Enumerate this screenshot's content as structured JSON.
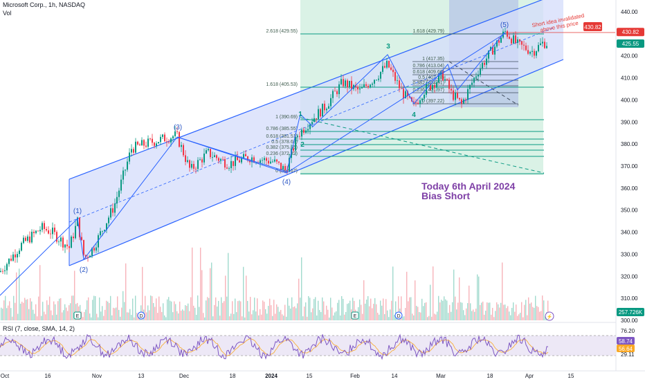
{
  "header": {
    "symbol_line": "Microsoft Corp., 1h, NASDAQ",
    "volume_label": "Vol"
  },
  "rsi": {
    "legend": "RSI (7, close, SMA, 14, 2)",
    "ticks": [
      "76.20",
      "29.11"
    ],
    "value_badges": [
      {
        "text": "58.74",
        "color": "#7e57c2"
      },
      {
        "text": "56.64",
        "color": "#f9a825"
      }
    ]
  },
  "price_axis": {
    "ticks": [
      "440.00",
      "430.00",
      "420.00",
      "410.00",
      "400.00",
      "390.00",
      "380.00",
      "370.00",
      "360.00",
      "350.00",
      "340.00",
      "330.00",
      "320.00",
      "310.00",
      "300.00"
    ],
    "badges": [
      {
        "text": "430.82",
        "color": "#e53935"
      },
      {
        "text": "425.55",
        "color": "#089981"
      },
      {
        "text": "257.726K",
        "color": "#089981"
      }
    ]
  },
  "time_axis": {
    "labels": [
      "Oct",
      "16",
      "Nov",
      "13",
      "Dec",
      "18",
      "2024",
      "15",
      "Feb",
      "14",
      "Mar",
      "18",
      "Apr",
      "15"
    ]
  },
  "annotations": {
    "today": "Today 6th April 2024",
    "bias": "Bias Short",
    "invalidation_line1": "Short idea invalidated",
    "invalidation_line2": "above this price",
    "invalidation_price": "430.82"
  },
  "waves": {
    "primary": [
      "(1)",
      "(2)",
      "(3)",
      "(4)",
      "(5)"
    ],
    "minor": [
      "1",
      "2",
      "3",
      "4"
    ]
  },
  "fib_left": [
    "2.618 (429.55)",
    "1.618 (405.53)",
    "1 (390.69)",
    "0.786 (385.55)",
    "0.618 (381.51)",
    "0.5 (378.68)",
    "0.382 (375.85)",
    "0.236 (372.32)",
    "0 (366.67)"
  ],
  "fib_right": [
    "1.618 (429.79)",
    "1 (417.35)",
    "0.786 (413.04)",
    "0.618 (409.66)",
    "0.5 (407.28)",
    "0.382 (404.91)",
    "0.236 (401.97)",
    "0 (397.22)"
  ],
  "event_markers": [
    "E",
    "D",
    "E",
    "D"
  ],
  "colors": {
    "up": "#089981",
    "down": "#f23645",
    "channel_line": "#2962ff",
    "channel_fill": "#d4dcfb",
    "fib_fill": "#cdeedd",
    "fib_line": "#089981",
    "text_purple": "#7e3fa6",
    "rsi_line": "#7e57c2",
    "rsi_sma": "#f9a825"
  },
  "chart_data": {
    "type": "candlestick",
    "title": "Microsoft Corp., 1h, NASDAQ",
    "ylabel": "",
    "ylim": [
      300,
      440
    ],
    "x": [
      "Oct",
      "16",
      "Nov",
      "13",
      "Dec",
      "18",
      "2024",
      "15",
      "Feb",
      "14",
      "Mar",
      "18",
      "Apr"
    ],
    "series": [
      {
        "name": "close",
        "values": [
          315,
          333,
          327,
          370,
          383,
          373,
          371,
          392,
          405,
          404,
          408,
          425,
          425.55
        ]
      }
    ],
    "price_levels": [
      430.82,
      425.55
    ],
    "rsi_levels": [
      76.2,
      29.11
    ],
    "grid": false,
    "legend": "top-left"
  }
}
